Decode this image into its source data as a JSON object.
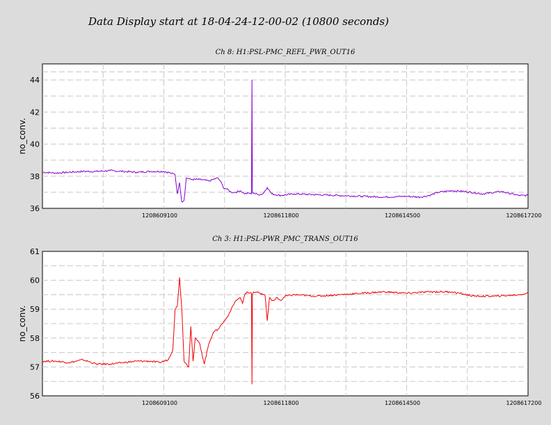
{
  "page": {
    "title": "Data Display start at 18-04-24-12-00-02 (10800 seconds)"
  },
  "chart_data": [
    {
      "type": "line",
      "title": "Ch 8: H1:PSL-PMC_REFL_PWR_OUT16",
      "xlabel": "",
      "ylabel": "no_conv.",
      "xlim": [
        1208606400,
        1208617200
      ],
      "ylim": [
        36,
        45
      ],
      "yticks": [
        36,
        38,
        40,
        42,
        44
      ],
      "xticks": [
        1208609100,
        1208611800,
        1208614500,
        1208617200
      ],
      "grid": true,
      "color": "#8800cc",
      "series": [
        {
          "x": [
            1208606400,
            1208606700,
            1208607000,
            1208607300,
            1208607600,
            1208607900,
            1208608200,
            1208608500,
            1208608800,
            1208609100,
            1208609250,
            1208609350,
            1208609400,
            1208609450,
            1208609500,
            1208609550,
            1208609600,
            1208609700,
            1208609900,
            1208610100,
            1208610200,
            1208610300,
            1208610380,
            1208610420,
            1208610500,
            1208610600,
            1208610700,
            1208610800,
            1208610900,
            1208611000,
            1208611050,
            1208611060,
            1208611070,
            1208611100,
            1208611200,
            1208611300,
            1208611400,
            1208611500,
            1208611700,
            1208612000,
            1208612500,
            1208613000,
            1208613500,
            1208614000,
            1208614500,
            1208614800,
            1208615000,
            1208615200,
            1208615500,
            1208615800,
            1208616200,
            1208616600,
            1208617000,
            1208617200
          ],
          "y": [
            38.25,
            38.2,
            38.25,
            38.3,
            38.3,
            38.35,
            38.3,
            38.25,
            38.3,
            38.3,
            38.2,
            38.1,
            36.9,
            37.6,
            36.4,
            36.5,
            37.9,
            37.8,
            37.8,
            37.7,
            37.8,
            37.9,
            37.6,
            37.3,
            37.2,
            37.0,
            37.0,
            37.1,
            36.9,
            36.95,
            36.9,
            44.0,
            37.0,
            36.95,
            36.85,
            36.9,
            37.3,
            36.9,
            36.8,
            36.9,
            36.85,
            36.8,
            36.75,
            36.7,
            36.75,
            36.7,
            36.8,
            37.0,
            37.1,
            37.05,
            36.9,
            37.05,
            36.8,
            36.8
          ]
        }
      ]
    },
    {
      "type": "line",
      "title": "Ch 3: H1:PSL-PWR_PMC_TRANS_OUT16",
      "xlabel": "",
      "ylabel": "no_conv.",
      "xlim": [
        1208606400,
        1208617200
      ],
      "ylim": [
        56,
        61
      ],
      "yticks": [
        56,
        57,
        58,
        59,
        60,
        61
      ],
      "xticks": [
        1208609100,
        1208611800,
        1208614500,
        1208617200
      ],
      "grid": true,
      "color": "#ee0000",
      "series": [
        {
          "x": [
            1208606400,
            1208606700,
            1208607000,
            1208607300,
            1208607600,
            1208607900,
            1208608200,
            1208608500,
            1208608800,
            1208609000,
            1208609200,
            1208609300,
            1208609350,
            1208609400,
            1208609450,
            1208609500,
            1208609550,
            1208609600,
            1208609650,
            1208609700,
            1208609750,
            1208609800,
            1208609900,
            1208610000,
            1208610100,
            1208610200,
            1208610300,
            1208610400,
            1208610500,
            1208610600,
            1208610700,
            1208610800,
            1208610850,
            1208610900,
            1208610950,
            1208611000,
            1208611050,
            1208611060,
            1208611070,
            1208611100,
            1208611200,
            1208611300,
            1208611350,
            1208611400,
            1208611450,
            1208611500,
            1208611550,
            1208611600,
            1208611700,
            1208611800,
            1208612000,
            1208612500,
            1208613000,
            1208613500,
            1208614000,
            1208614500,
            1208615000,
            1208615500,
            1208616000,
            1208616500,
            1208617000,
            1208617200
          ],
          "y": [
            57.2,
            57.2,
            57.15,
            57.25,
            57.1,
            57.1,
            57.15,
            57.2,
            57.2,
            57.15,
            57.25,
            57.6,
            59.0,
            59.1,
            60.1,
            59.0,
            57.2,
            57.1,
            57.0,
            58.4,
            57.2,
            58.0,
            57.8,
            57.1,
            57.8,
            58.2,
            58.3,
            58.5,
            58.7,
            59.0,
            59.3,
            59.4,
            59.2,
            59.5,
            59.6,
            59.55,
            59.55,
            56.4,
            59.5,
            59.6,
            59.6,
            59.5,
            59.5,
            58.6,
            59.4,
            59.3,
            59.3,
            59.4,
            59.3,
            59.45,
            59.5,
            59.45,
            59.5,
            59.55,
            59.6,
            59.55,
            59.6,
            59.6,
            59.45,
            59.45,
            59.5,
            59.55
          ]
        }
      ]
    }
  ]
}
